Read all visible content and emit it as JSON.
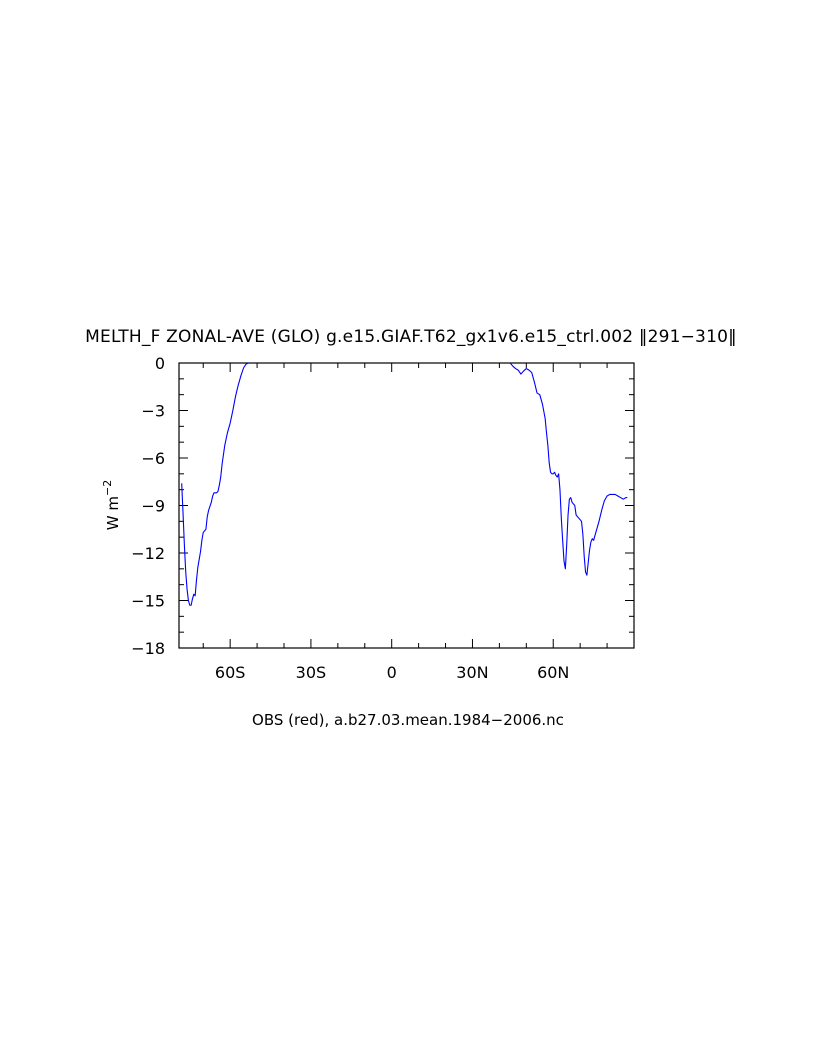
{
  "chart_data": {
    "type": "line",
    "title": "MELTH_F ZONAL-AVE (GLO) g.e15.GIAF.T62_gx1v6.e15_ctrl.002 ‖291−310‖",
    "ylabel_base": "W m",
    "ylabel_exp": "−2",
    "xlabel": "",
    "footer": "OBS (red), a.b27.03.mean.1984−2006.nc",
    "xlim": [
      -79,
      90
    ],
    "ylim": [
      -18,
      0
    ],
    "grid": false,
    "x_ticks": [
      {
        "value": -60,
        "label": "60S"
      },
      {
        "value": -30,
        "label": "30S"
      },
      {
        "value": 0,
        "label": "0"
      },
      {
        "value": 30,
        "label": "30N"
      },
      {
        "value": 60,
        "label": "60N"
      }
    ],
    "y_ticks": [
      {
        "value": 0,
        "label": "0"
      },
      {
        "value": -3,
        "label": "−3"
      },
      {
        "value": -6,
        "label": "−6"
      },
      {
        "value": -9,
        "label": "−9"
      },
      {
        "value": -12,
        "label": "−12"
      },
      {
        "value": -15,
        "label": "−15"
      },
      {
        "value": -18,
        "label": "−18"
      }
    ],
    "series": [
      {
        "color": "#0000ff",
        "segments": [
          [
            [
              -78,
              -7.6
            ],
            [
              -77.5,
              -9.5
            ],
            [
              -77,
              -11.5
            ],
            [
              -76.5,
              -13.2
            ],
            [
              -76,
              -14.3
            ],
            [
              -75.5,
              -15.0
            ],
            [
              -75,
              -15.3
            ],
            [
              -74.5,
              -15.3
            ],
            [
              -74,
              -14.9
            ],
            [
              -73.5,
              -14.6
            ],
            [
              -73,
              -14.7
            ],
            [
              -72.5,
              -13.7
            ],
            [
              -72,
              -12.9
            ],
            [
              -71,
              -11.9
            ],
            [
              -70.5,
              -11.2
            ],
            [
              -70,
              -10.7
            ],
            [
              -69,
              -10.5
            ],
            [
              -68.5,
              -9.7
            ],
            [
              -68,
              -9.3
            ],
            [
              -67,
              -8.8
            ],
            [
              -66.5,
              -8.4
            ],
            [
              -66,
              -8.2
            ],
            [
              -65,
              -8.2
            ],
            [
              -64.5,
              -8.1
            ],
            [
              -64,
              -7.7
            ],
            [
              -63.5,
              -7.2
            ],
            [
              -63,
              -6.4
            ],
            [
              -62,
              -5.2
            ],
            [
              -61,
              -4.4
            ],
            [
              -60,
              -3.8
            ],
            [
              -59,
              -3.0
            ],
            [
              -58,
              -2.1
            ],
            [
              -57,
              -1.4
            ],
            [
              -56,
              -0.8
            ],
            [
              -55,
              -0.3
            ],
            [
              -54,
              -0.05
            ],
            [
              -53,
              0
            ]
          ],
          [
            [
              44,
              0
            ],
            [
              45,
              -0.2
            ],
            [
              46,
              -0.35
            ],
            [
              47,
              -0.45
            ],
            [
              48,
              -0.7
            ],
            [
              49,
              -0.5
            ],
            [
              50,
              -0.35
            ],
            [
              51,
              -0.45
            ],
            [
              52,
              -0.6
            ],
            [
              53,
              -1.2
            ],
            [
              54,
              -1.9
            ],
            [
              55,
              -2.0
            ],
            [
              55.5,
              -2.3
            ],
            [
              56,
              -2.6
            ],
            [
              57,
              -3.5
            ],
            [
              57.5,
              -4.4
            ],
            [
              58,
              -5.2
            ],
            [
              58.5,
              -6.3
            ],
            [
              59,
              -6.9
            ],
            [
              59.5,
              -7.0
            ],
            [
              60,
              -7.0
            ],
            [
              60.5,
              -6.9
            ],
            [
              61,
              -7.1
            ],
            [
              61.5,
              -7.2
            ],
            [
              62,
              -7.0
            ],
            [
              62.5,
              -8.0
            ],
            [
              63,
              -9.8
            ],
            [
              63.5,
              -11.2
            ],
            [
              64,
              -12.5
            ],
            [
              64.5,
              -13.0
            ],
            [
              65,
              -11.5
            ],
            [
              65.5,
              -9.6
            ],
            [
              66,
              -8.6
            ],
            [
              66.5,
              -8.5
            ],
            [
              67,
              -8.8
            ],
            [
              68,
              -9.0
            ],
            [
              68.5,
              -9.6
            ],
            [
              69.5,
              -9.8
            ],
            [
              70.5,
              -10.0
            ],
            [
              71,
              -10.8
            ],
            [
              71.5,
              -12.2
            ],
            [
              72,
              -13.2
            ],
            [
              72.5,
              -13.4
            ],
            [
              73,
              -12.6
            ],
            [
              73.5,
              -11.8
            ],
            [
              74,
              -11.3
            ],
            [
              74.5,
              -11.1
            ],
            [
              75,
              -11.2
            ],
            [
              75.5,
              -10.9
            ],
            [
              76,
              -10.6
            ],
            [
              77,
              -10.0
            ],
            [
              78,
              -9.3
            ],
            [
              79,
              -8.7
            ],
            [
              80,
              -8.4
            ],
            [
              81,
              -8.3
            ],
            [
              82,
              -8.3
            ],
            [
              83,
              -8.3
            ],
            [
              84,
              -8.4
            ],
            [
              85,
              -8.5
            ],
            [
              86,
              -8.6
            ],
            [
              87,
              -8.5
            ],
            [
              87.5,
              -8.5
            ]
          ]
        ]
      }
    ]
  }
}
